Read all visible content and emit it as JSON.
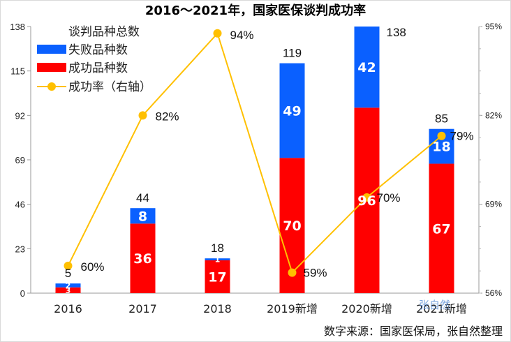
{
  "chart_data": {
    "type": "bar",
    "title": "2016～2021年，国家医保谈判成功率",
    "categories": [
      "2016",
      "2017",
      "2018",
      "2019新增",
      "2020新增",
      "2021新增"
    ],
    "series": [
      {
        "name": "谈判品种总数",
        "values": [
          5,
          44,
          18,
          119,
          138,
          85
        ]
      },
      {
        "name": "失败品种数",
        "values": [
          2,
          8,
          1,
          49,
          42,
          18
        ],
        "color": "#0a60ff"
      },
      {
        "name": "成功品种数",
        "values": [
          3,
          36,
          17,
          70,
          96,
          67
        ],
        "color": "#ff0000"
      },
      {
        "name": "成功率（右轴）",
        "values": [
          60,
          82,
          94,
          59,
          70,
          79
        ],
        "unit": "%",
        "axis": "right",
        "type": "line",
        "color": "#ffc000"
      }
    ],
    "yleft": {
      "ticks": [
        "0",
        "23",
        "46",
        "69",
        "92",
        "115",
        "138"
      ],
      "ylim": [
        0,
        138
      ]
    },
    "yright": {
      "ticks": [
        "56%",
        "69%",
        "82%",
        "95%"
      ],
      "ylim": [
        56,
        95
      ]
    },
    "inbar_labels": {
      "failed": [
        "2",
        "8",
        "1",
        "49",
        "42",
        "18"
      ],
      "success": [
        "3",
        "36",
        "17",
        "70",
        "96",
        "67"
      ]
    },
    "total_labels": [
      "5",
      "44",
      "18",
      "119",
      "138",
      "85"
    ],
    "rate_labels": [
      "60%",
      "82%",
      "94%",
      "59%",
      "70%",
      "79%"
    ],
    "legend_position": "top-left",
    "grid": false
  },
  "source": "数字来源：国家医保局，张自然整理",
  "watermark": "张自然"
}
